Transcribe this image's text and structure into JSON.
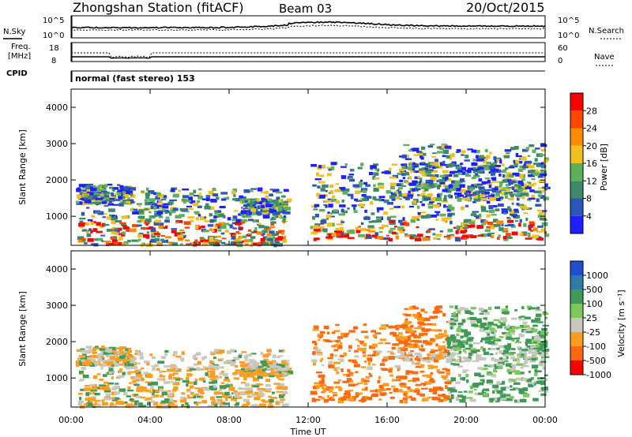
{
  "header": {
    "station": "Zhongshan Station (fitACF)",
    "beam": "Beam 03",
    "date": "20/Oct/2015"
  },
  "top_panels": {
    "nsky_label": "N.Sky",
    "nsearch_label": "N.Search",
    "count_ticks_left": [
      "10^5",
      "10^0"
    ],
    "count_ticks_right": [
      "10^5",
      "10^0"
    ],
    "freq_label_1": "Freq.",
    "freq_label_2": "[MHz]",
    "freq_ticks": [
      "18",
      "8"
    ],
    "nave_label": "Nave",
    "nave_ticks": [
      "60",
      "0"
    ],
    "cpid_label": "CPID",
    "cpid_text": "normal (fast stereo) 153"
  },
  "axes": {
    "xlabel": "Time UT",
    "x_ticks": [
      "00:00",
      "04:00",
      "08:00",
      "12:00",
      "16:00",
      "20:00",
      "00:00"
    ],
    "ylabel": "Slant Range [km]",
    "y_ticks": [
      "1000",
      "2000",
      "3000",
      "4000"
    ]
  },
  "colorbars": {
    "power": {
      "label": "Power [dB]",
      "ticks": [
        "4",
        "8",
        "12",
        "16",
        "20",
        "24",
        "28"
      ],
      "colors": [
        "#1f1fff",
        "#2b55b8",
        "#3d8a6a",
        "#5fb05a",
        "#f0c020",
        "#ff8c00",
        "#ff4500",
        "#ff0000"
      ]
    },
    "velocity": {
      "label": "Velocity [m s⁻¹]",
      "ticks": [
        "1000",
        "500",
        "100",
        "25",
        "-25",
        "-100",
        "-500",
        "-1000"
      ],
      "colors": [
        "#1f4fcc",
        "#2f7aa8",
        "#3f9a5a",
        "#7cc85a",
        "#c8c8bf",
        "#ff9d20",
        "#ff6a10",
        "#ff0000"
      ]
    }
  },
  "chart_data": [
    {
      "type": "line",
      "title": "N.Sky / N.Search",
      "x_range": [
        "00:00",
        "24:00"
      ],
      "series": [
        {
          "name": "N.Sky",
          "style": "solid"
        },
        {
          "name": "N.Search",
          "style": "dotted"
        }
      ]
    },
    {
      "type": "line",
      "title": "Freq. [MHz] / Nave",
      "y_ticks": [
        8,
        18
      ],
      "y2_ticks": [
        0,
        60
      ],
      "series": [
        {
          "name": "Freq.",
          "approx_value": 10
        },
        {
          "name": "Nave",
          "approx_value": 18
        }
      ]
    },
    {
      "type": "heatmap",
      "title": "Power [dB]",
      "x_range_hours": [
        0,
        24
      ],
      "y_range_km": [
        200,
        4500
      ],
      "colorscale_range": [
        0,
        30
      ]
    },
    {
      "type": "heatmap",
      "title": "Velocity [m s-1]",
      "x_range_hours": [
        0,
        24
      ],
      "y_range_km": [
        200,
        4500
      ],
      "colorscale_range": [
        -1000,
        1000
      ]
    }
  ]
}
